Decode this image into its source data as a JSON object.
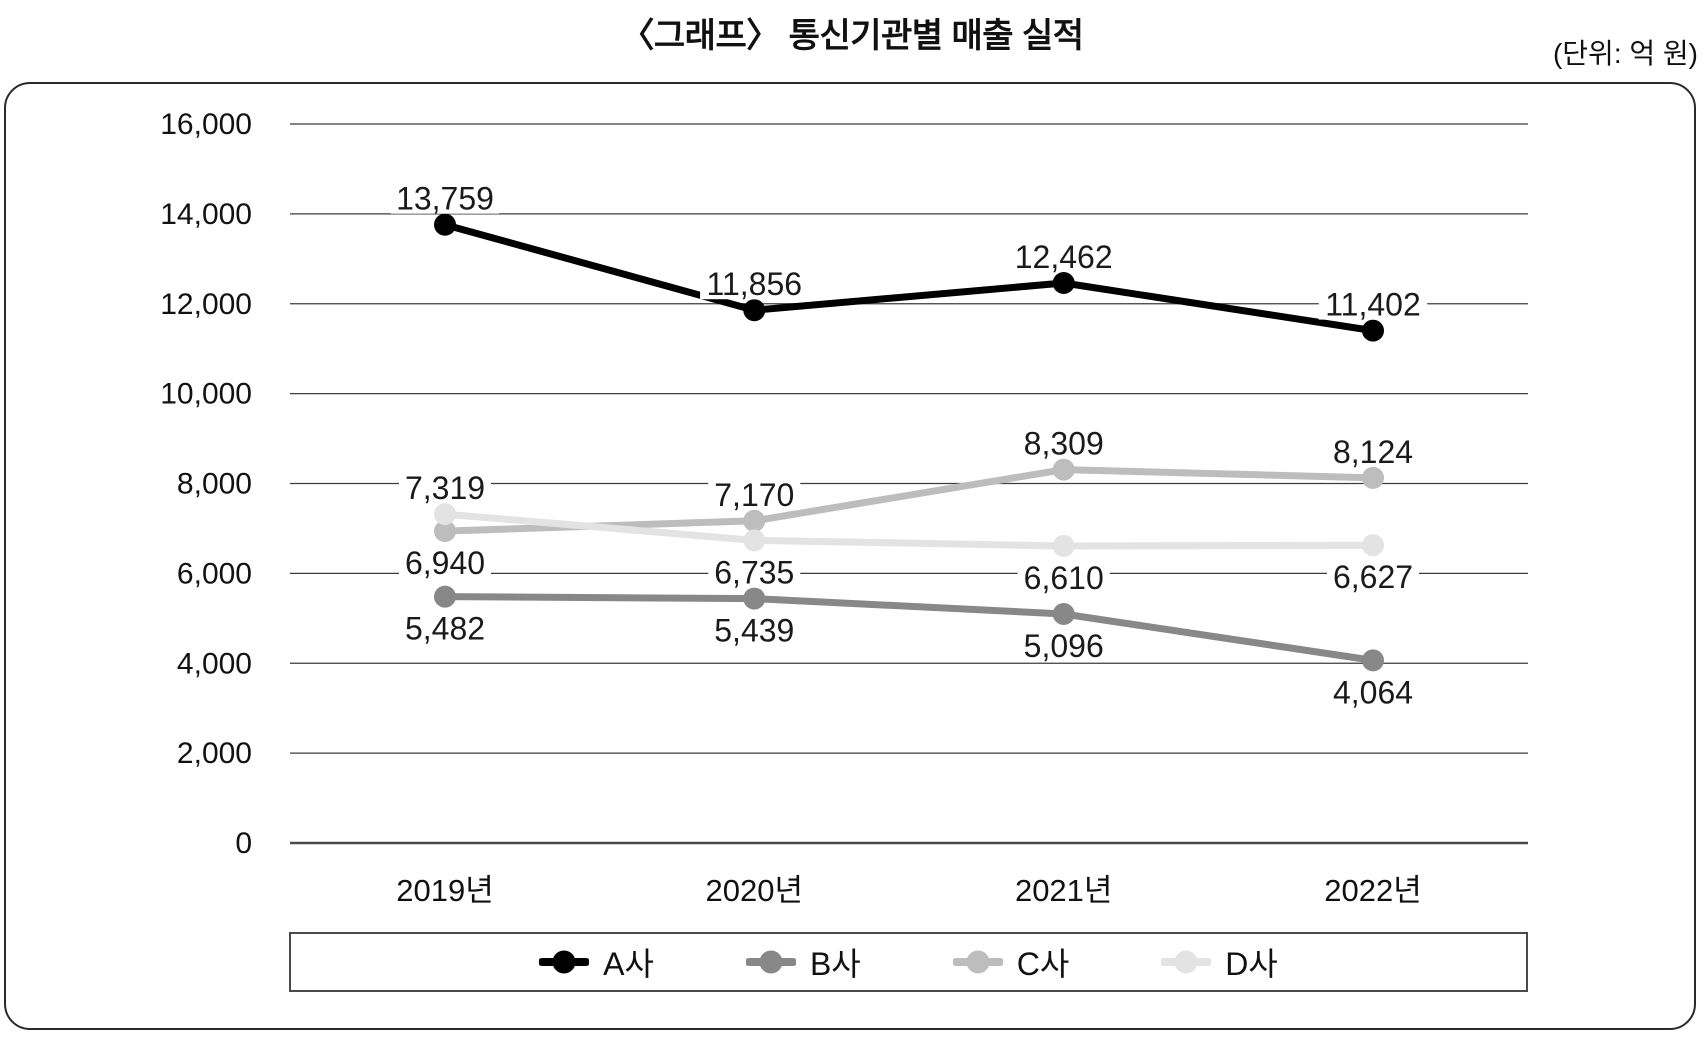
{
  "title": "〈그래프〉 통신기관별 매출 실적",
  "unit_note": "(단위: 억 원)",
  "chart_data": {
    "type": "line",
    "title": "〈그래프〉 통신기관별 매출 실적",
    "unit": "억 원",
    "categories": [
      "2019년",
      "2020년",
      "2021년",
      "2022년"
    ],
    "series": [
      {
        "name": "A사",
        "color": "#000000",
        "values": [
          13759,
          11856,
          12462,
          11402
        ],
        "label_pos": [
          "above",
          "above",
          "above",
          "above"
        ]
      },
      {
        "name": "B사",
        "color": "#888888",
        "values": [
          5482,
          5439,
          5096,
          4064
        ],
        "label_pos": [
          "below",
          "below",
          "below",
          "below"
        ]
      },
      {
        "name": "C사",
        "color": "#bdbdbd",
        "values": [
          6940,
          7170,
          8309,
          8124
        ],
        "label_pos": [
          "below",
          "above",
          "above",
          "above"
        ]
      },
      {
        "name": "D사",
        "color": "#e3e3e3",
        "values": [
          7319,
          6735,
          6610,
          6627
        ],
        "label_pos": [
          "above",
          "below",
          "below",
          "below"
        ]
      }
    ],
    "ylim": [
      0,
      16000
    ],
    "ytick_step": 2000,
    "ytick_labels": [
      "0",
      "2,000",
      "4,000",
      "6,000",
      "8,000",
      "10,000",
      "12,000",
      "14,000",
      "16,000"
    ],
    "grid": "horizontal-only",
    "legend_position": "bottom",
    "value_labels": true,
    "grid_color": "#3d3d3d",
    "axis_color": "#4a4a4a",
    "label_color": "#1a1a1a"
  }
}
